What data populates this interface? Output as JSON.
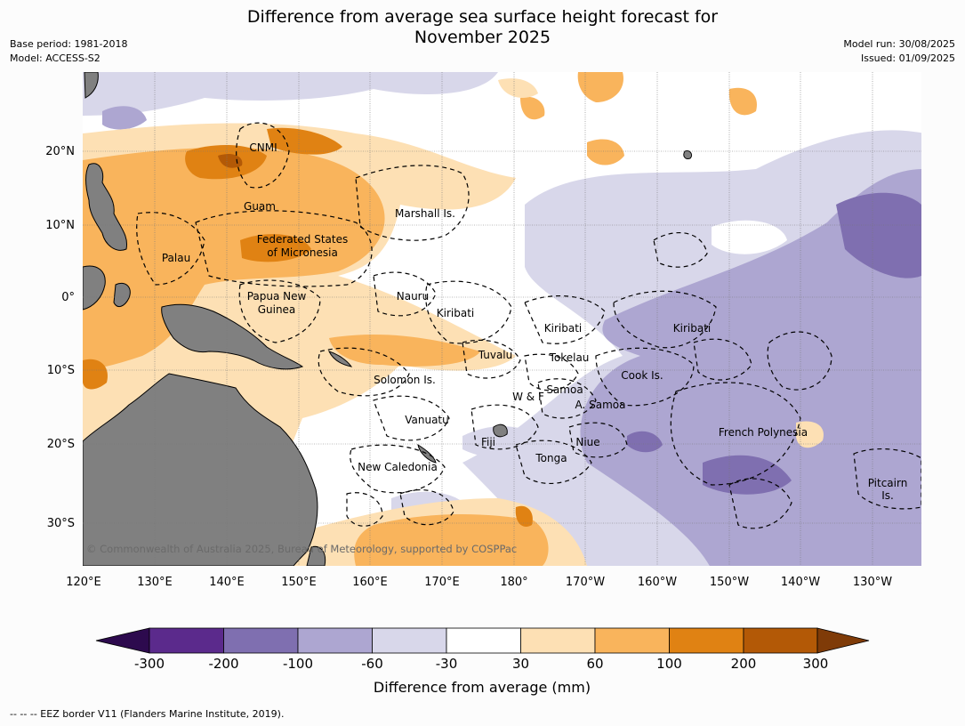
{
  "header": {
    "title_line1": "Difference from average sea surface height forecast for",
    "title_line2": "November 2025",
    "base_period": "Base period: 1981-2018",
    "model": "Model: ACCESS-S2",
    "model_run": "Model run: 30/08/2025",
    "issued": "Issued: 01/09/2025"
  },
  "map": {
    "copyright": "© Commonwealth of Australia 2025, Bureau of Meteorology, supported by COSPPac",
    "lon_ticks": [
      "120°E",
      "130°E",
      "140°E",
      "150°E",
      "160°E",
      "170°E",
      "180°",
      "170°W",
      "160°W",
      "150°W",
      "140°W",
      "130°W"
    ],
    "lat_ticks": [
      "20°N",
      "10°N",
      "0°",
      "10°S",
      "20°S",
      "30°S"
    ],
    "regions": [
      "CNMI",
      "Guam",
      "Marshall Is.",
      "Federated States",
      "of Micronesia",
      "Palau",
      "Nauru",
      "Papua New",
      "Guinea",
      "Kiribati",
      "Kiribati",
      "Kiribati",
      "Tuvalu",
      "Tokelau",
      "Solomon Is.",
      "Samoa",
      "W & F",
      "A. Samoa",
      "Cook Is.",
      "Vanuatu",
      "Fiji",
      "Niue",
      "Tonga",
      "New Caledonia",
      "French Polynesia",
      "Pitcairn",
      "Is."
    ],
    "land_color": "#808080"
  },
  "colorbar": {
    "title": "Difference from average (mm)",
    "labels": [
      "-300",
      "-200",
      "-100",
      "-60",
      "-30",
      "30",
      "60",
      "100",
      "200",
      "300"
    ],
    "colors": [
      "#2d0a4e",
      "#5b2a8c",
      "#7f6fb0",
      "#ada6d1",
      "#d8d7ea",
      "#ffffff",
      "#fde0b4",
      "#f9b45c",
      "#e08213",
      "#b35906",
      "#7f3b08"
    ]
  },
  "footer": "-- -- -- EEZ border V11 (Flanders Marine Institute, 2019)."
}
